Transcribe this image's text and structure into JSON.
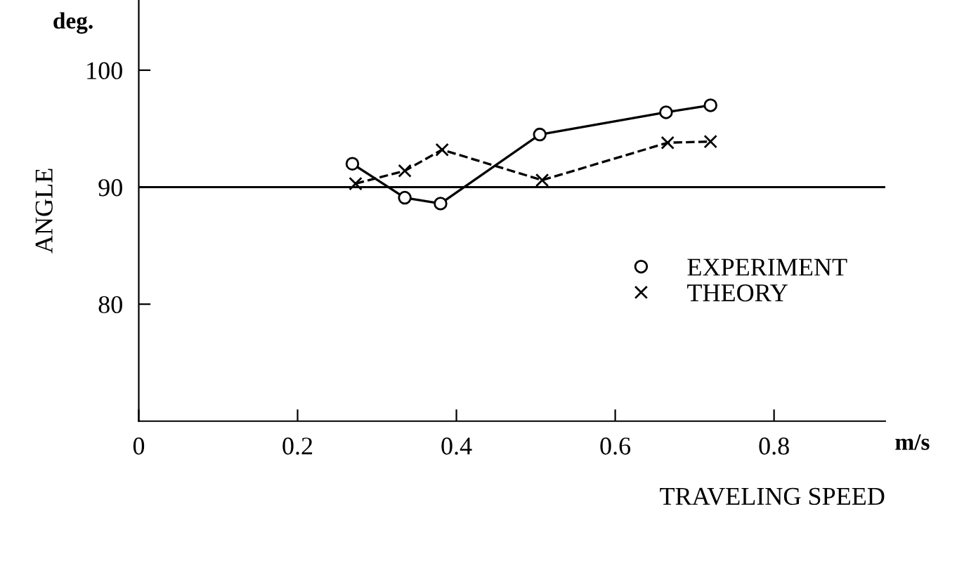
{
  "chart_data": {
    "type": "line",
    "xlabel": "TRAVELING SPEED",
    "ylabel": "ANGLE",
    "annotations": [
      "deg.",
      "m/s"
    ],
    "xlim": [
      0,
      0.94
    ],
    "ylim": [
      70,
      106
    ],
    "xticks": [
      0,
      0.2,
      0.4,
      0.6,
      0.8
    ],
    "yticks": [
      80,
      90,
      100
    ],
    "grid": false,
    "legend": "right",
    "series": [
      {
        "name": "EXPERIMENT",
        "color": "#000000",
        "marker": "circle",
        "line_style": "solid",
        "x": [
          0.269,
          0.335,
          0.38,
          0.505,
          0.664,
          0.72
        ],
        "values": [
          92.0,
          89.1,
          88.6,
          94.5,
          96.4,
          97.0
        ]
      },
      {
        "name": "THEORY",
        "color": "#000000",
        "marker": "cross",
        "line_style": "dashed",
        "x": [
          0.273,
          0.335,
          0.382,
          0.508,
          0.666,
          0.72
        ],
        "values": [
          90.3,
          91.4,
          93.2,
          90.6,
          93.8,
          93.9
        ]
      }
    ],
    "ref_lines": [
      {
        "axis": "y",
        "value": 90,
        "label": null,
        "color": "#000000",
        "line_style": "solid"
      }
    ]
  }
}
